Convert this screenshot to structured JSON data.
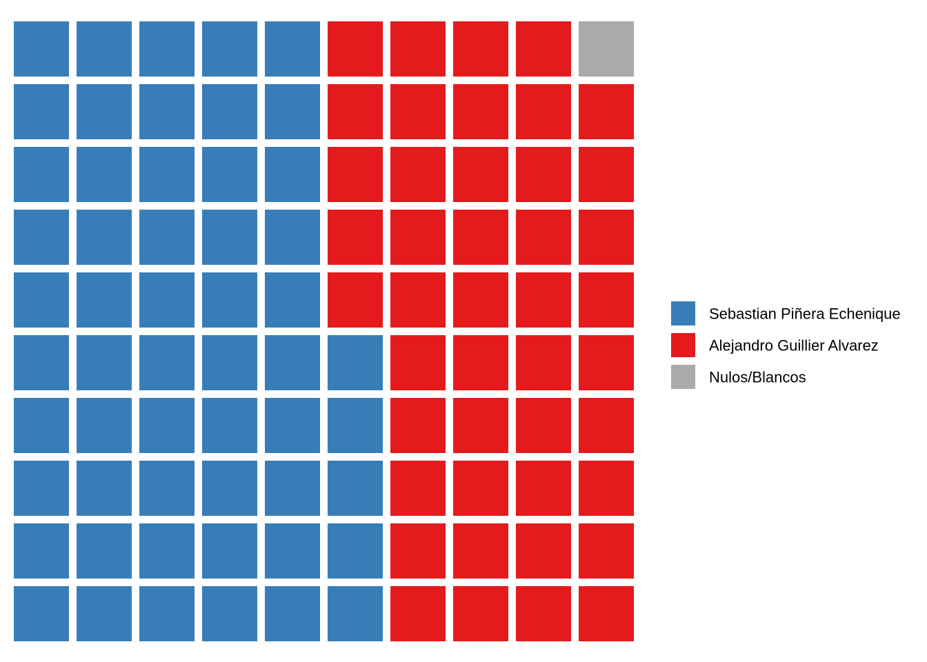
{
  "chart_data": {
    "type": "waffle",
    "grid": {
      "rows": 10,
      "cols": 10,
      "fill_order": "column-major, bottom-to-top, left-to-right"
    },
    "series": [
      {
        "name": "Sebastian Piñera Echenique",
        "value": 55,
        "color": "#377EB8"
      },
      {
        "name": "Alejandro  Guillier Alvarez",
        "value": 44,
        "color": "#E41A1C"
      },
      {
        "name": "Nulos/Blancos",
        "value": 1,
        "color": "#AAAAAA"
      }
    ],
    "legend": {
      "position": "right"
    },
    "title": "",
    "xlabel": "",
    "ylabel": ""
  }
}
